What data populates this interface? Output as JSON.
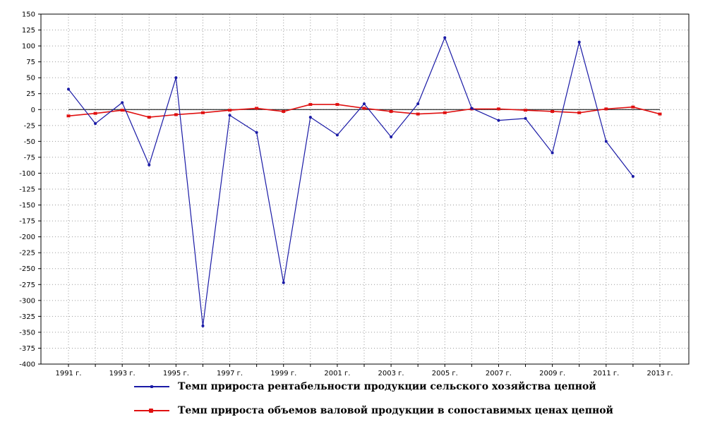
{
  "chart_data": {
    "type": "line",
    "title": "",
    "xlabel": "",
    "ylabel": "",
    "ylim": [
      -400,
      150
    ],
    "y_ticks": [
      150,
      125,
      100,
      75,
      50,
      25,
      0,
      -25,
      -50,
      -75,
      -100,
      -125,
      -150,
      -175,
      -200,
      -225,
      -250,
      -275,
      -300,
      -325,
      -350,
      -375,
      -400
    ],
    "x": [
      1991,
      1992,
      1993,
      1994,
      1995,
      1996,
      1997,
      1998,
      1999,
      2000,
      2001,
      2002,
      2003,
      2004,
      2005,
      2006,
      2007,
      2008,
      2009,
      2010,
      2011,
      2012,
      2013
    ],
    "x_tick_labels": [
      "1991 г.",
      "1993 г.",
      "1995 г.",
      "1997 г.",
      "1999 г.",
      "2001 г.",
      "2003 г.",
      "2005 г.",
      "2007 г.",
      "2009 г.",
      "2011 г.",
      "2013 г."
    ],
    "grid": true,
    "legend_position": "bottom",
    "series": [
      {
        "name": "Темп прироста рентабельности продукции сельского хозяйства цепной",
        "color": "#1a1aa6",
        "values": [
          32,
          -22,
          11,
          -87,
          50,
          -340,
          -9,
          -36,
          -272,
          -12,
          -40,
          9,
          -43,
          9,
          113,
          2,
          -17,
          -14,
          -68,
          106,
          -50,
          -105,
          null
        ]
      },
      {
        "name": "Темп прироста объемов валовой продукции в сопоставимых ценах цепной",
        "color": "#e01010",
        "values": [
          -10,
          -6,
          -1,
          -12,
          -8,
          -5,
          -1,
          2,
          -3,
          8,
          8,
          2,
          -3,
          -7,
          -5,
          1,
          1,
          -1,
          -3,
          -5,
          1,
          4,
          -7
        ]
      }
    ]
  }
}
